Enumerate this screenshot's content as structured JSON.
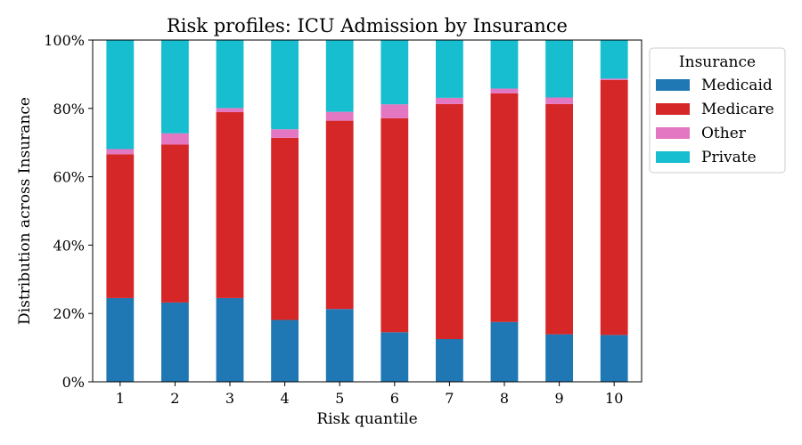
{
  "chart_data": {
    "type": "bar",
    "stacked": true,
    "title": "Risk profiles: ICU Admission by Insurance",
    "xlabel": "Risk quantile",
    "ylabel": "Distribution across Insurance",
    "categories": [
      "1",
      "2",
      "3",
      "4",
      "5",
      "6",
      "7",
      "8",
      "9",
      "10"
    ],
    "ylim": [
      0,
      1
    ],
    "yticks": [
      {
        "value": 0,
        "label": "0%"
      },
      {
        "value": 0.2,
        "label": "20%"
      },
      {
        "value": 0.4,
        "label": "40%"
      },
      {
        "value": 0.6,
        "label": "60%"
      },
      {
        "value": 0.8,
        "label": "80%"
      },
      {
        "value": 1.0,
        "label": "100%"
      }
    ],
    "legend": {
      "title": "Insurance",
      "position": "right"
    },
    "series": [
      {
        "name": "Medicaid",
        "color": "#1f77b4",
        "values": [
          0.245,
          0.232,
          0.245,
          0.181,
          0.213,
          0.145,
          0.125,
          0.175,
          0.139,
          0.137
        ]
      },
      {
        "name": "Medicare",
        "color": "#d62728",
        "values": [
          0.421,
          0.462,
          0.544,
          0.533,
          0.551,
          0.626,
          0.688,
          0.669,
          0.674,
          0.746
        ]
      },
      {
        "name": "Other",
        "color": "#e377c2",
        "values": [
          0.015,
          0.033,
          0.012,
          0.025,
          0.026,
          0.041,
          0.018,
          0.014,
          0.019,
          0.004
        ]
      },
      {
        "name": "Private",
        "color": "#17becf",
        "values": [
          0.319,
          0.273,
          0.199,
          0.261,
          0.21,
          0.188,
          0.169,
          0.142,
          0.168,
          0.113
        ]
      }
    ]
  }
}
